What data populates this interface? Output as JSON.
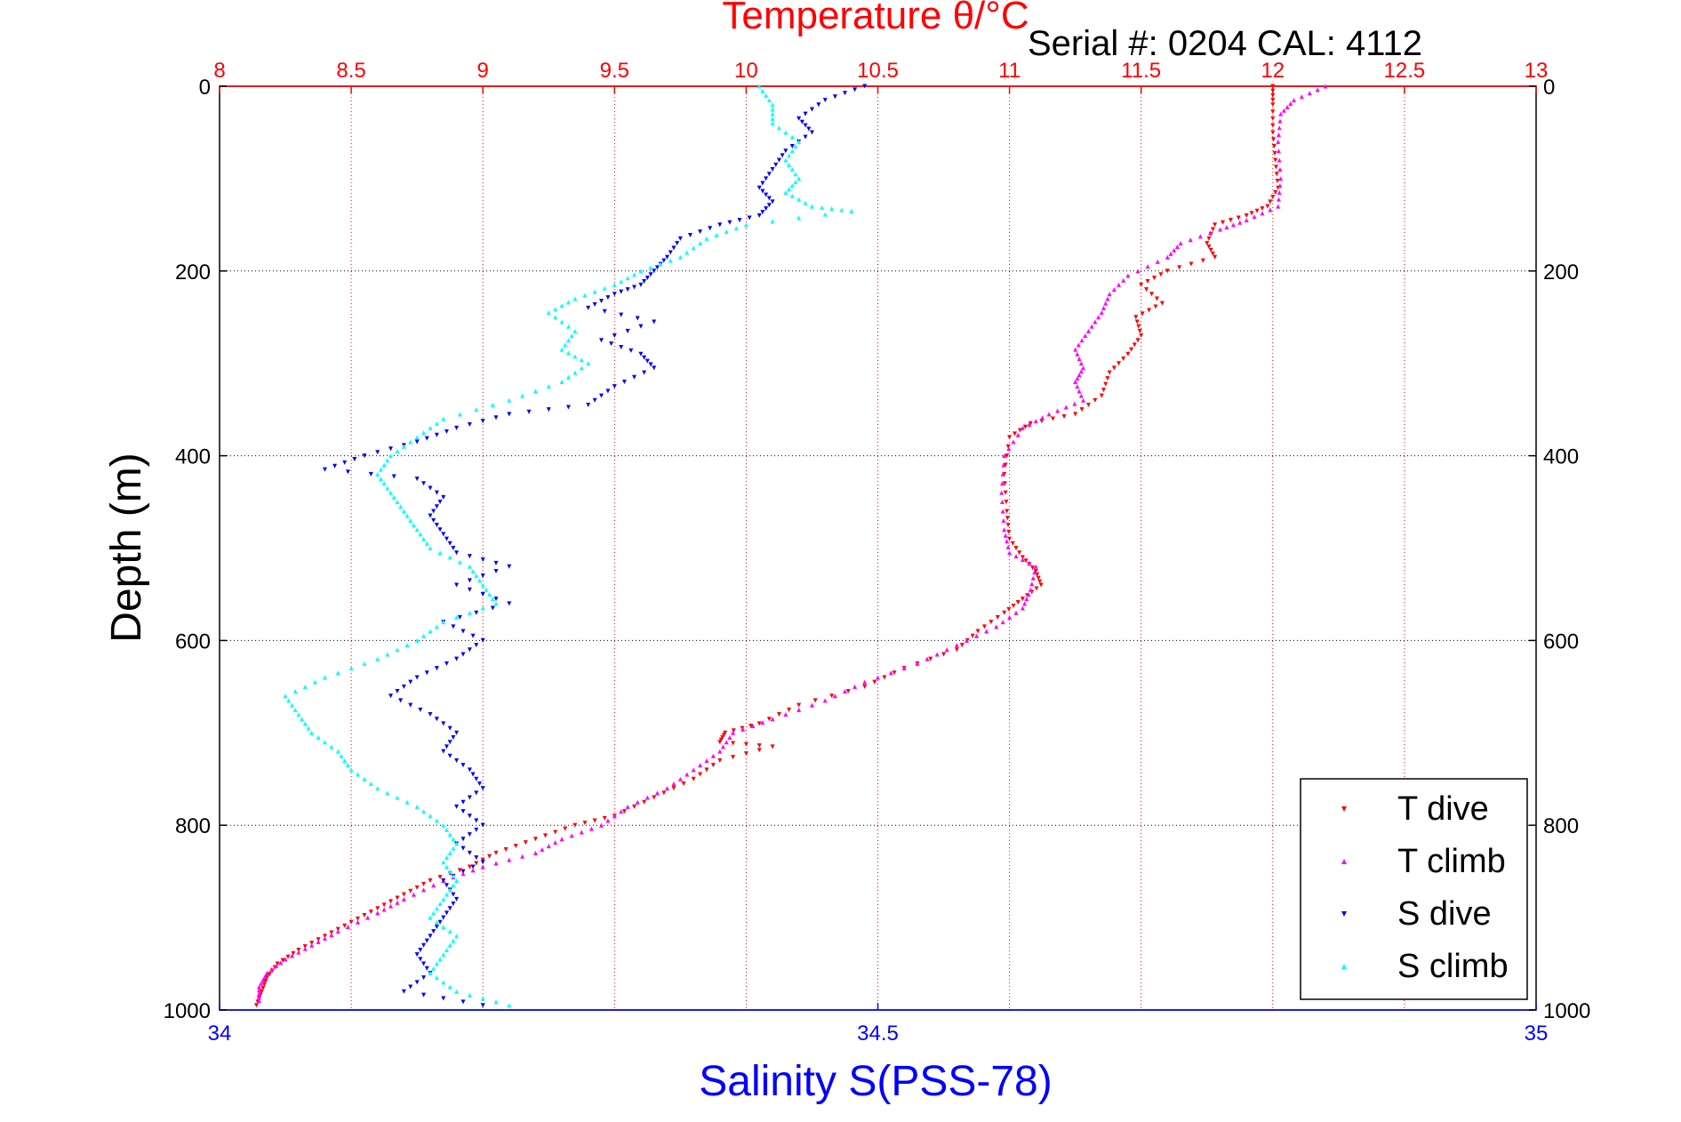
{
  "chart_data": {
    "type": "scatter",
    "title": "Temperature θ/°C",
    "subtitle": "Serial #: 0204  CAL: 4112",
    "xlabel": "Salinity S(PSS-78)",
    "ylabel": "Depth (m)",
    "x_top": {
      "label": "Temperature θ/°C",
      "range": [
        8,
        13
      ],
      "ticks": [
        "8",
        "8.5",
        "9",
        "9.5",
        "10",
        "10.5",
        "11",
        "11.5",
        "12",
        "12.5",
        "13"
      ],
      "color": "#ff0000"
    },
    "x_bottom": {
      "label": "Salinity S(PSS-78)",
      "range": [
        34,
        35
      ],
      "ticks": [
        "34",
        "34.5",
        "35"
      ],
      "color": "#0000ff"
    },
    "y": {
      "label": "Depth (m)",
      "range": [
        0,
        1000
      ],
      "reversed": true,
      "ticks": [
        "0",
        "200",
        "400",
        "600",
        "800",
        "1000"
      ]
    },
    "grid": true,
    "legend_position": "bottom-right",
    "series": [
      {
        "name": "T dive",
        "axis": "top",
        "color": "#ff0000",
        "marker": "triangle-down",
        "points": [
          [
            12.0,
            0
          ],
          [
            12.0,
            20
          ],
          [
            12.0,
            50
          ],
          [
            12.01,
            80
          ],
          [
            12.02,
            110
          ],
          [
            11.98,
            130
          ],
          [
            11.9,
            140
          ],
          [
            11.78,
            150
          ],
          [
            11.75,
            170
          ],
          [
            11.78,
            185
          ],
          [
            11.6,
            200
          ],
          [
            11.5,
            215
          ],
          [
            11.58,
            235
          ],
          [
            11.48,
            250
          ],
          [
            11.5,
            270
          ],
          [
            11.45,
            290
          ],
          [
            11.38,
            310
          ],
          [
            11.35,
            335
          ],
          [
            11.25,
            355
          ],
          [
            11.08,
            365
          ],
          [
            11.0,
            380
          ],
          [
            10.98,
            420
          ],
          [
            10.99,
            460
          ],
          [
            11.0,
            490
          ],
          [
            11.05,
            510
          ],
          [
            11.1,
            525
          ],
          [
            11.12,
            540
          ],
          [
            11.05,
            555
          ],
          [
            10.98,
            570
          ],
          [
            10.88,
            590
          ],
          [
            10.8,
            610
          ],
          [
            10.6,
            630
          ],
          [
            10.45,
            650
          ],
          [
            10.2,
            670
          ],
          [
            10.05,
            690
          ],
          [
            9.92,
            700
          ],
          [
            9.9,
            710
          ],
          [
            10.1,
            715
          ],
          [
            9.9,
            730
          ],
          [
            9.8,
            750
          ],
          [
            9.65,
            770
          ],
          [
            9.5,
            790
          ],
          [
            9.35,
            800
          ],
          [
            9.2,
            815
          ],
          [
            9.05,
            830
          ],
          [
            8.95,
            845
          ],
          [
            8.8,
            860
          ],
          [
            8.7,
            875
          ],
          [
            8.6,
            890
          ],
          [
            8.5,
            905
          ],
          [
            8.4,
            920
          ],
          [
            8.3,
            935
          ],
          [
            8.22,
            950
          ],
          [
            8.18,
            965
          ],
          [
            8.16,
            980
          ],
          [
            8.14,
            995
          ]
        ]
      },
      {
        "name": "T climb",
        "axis": "top",
        "color": "#ff00ff",
        "marker": "triangle-up",
        "points": [
          [
            12.2,
            0
          ],
          [
            12.08,
            15
          ],
          [
            12.03,
            30
          ],
          [
            12.02,
            60
          ],
          [
            12.03,
            100
          ],
          [
            12.02,
            130
          ],
          [
            11.9,
            145
          ],
          [
            11.8,
            155
          ],
          [
            11.65,
            170
          ],
          [
            11.6,
            185
          ],
          [
            11.45,
            205
          ],
          [
            11.38,
            225
          ],
          [
            11.35,
            245
          ],
          [
            11.3,
            265
          ],
          [
            11.25,
            285
          ],
          [
            11.28,
            305
          ],
          [
            11.25,
            320
          ],
          [
            11.28,
            340
          ],
          [
            11.15,
            355
          ],
          [
            11.05,
            370
          ],
          [
            10.98,
            400
          ],
          [
            10.97,
            440
          ],
          [
            10.98,
            480
          ],
          [
            11.0,
            505
          ],
          [
            11.1,
            520
          ],
          [
            11.08,
            545
          ],
          [
            11.05,
            565
          ],
          [
            10.95,
            585
          ],
          [
            10.8,
            605
          ],
          [
            10.65,
            625
          ],
          [
            10.45,
            645
          ],
          [
            10.3,
            665
          ],
          [
            10.1,
            685
          ],
          [
            9.95,
            700
          ],
          [
            9.9,
            720
          ],
          [
            9.8,
            740
          ],
          [
            9.7,
            760
          ],
          [
            9.55,
            780
          ],
          [
            9.45,
            800
          ],
          [
            9.3,
            815
          ],
          [
            9.2,
            830
          ],
          [
            9.0,
            845
          ],
          [
            8.85,
            860
          ],
          [
            8.7,
            880
          ],
          [
            8.6,
            895
          ],
          [
            8.45,
            915
          ],
          [
            8.35,
            930
          ],
          [
            8.25,
            945
          ],
          [
            8.18,
            960
          ],
          [
            8.15,
            975
          ],
          [
            8.15,
            990
          ]
        ]
      },
      {
        "name": "S dive",
        "axis": "bottom",
        "color": "#0000ff",
        "marker": "triangle-down",
        "points": [
          [
            34.49,
            0
          ],
          [
            34.46,
            15
          ],
          [
            34.44,
            35
          ],
          [
            34.45,
            50
          ],
          [
            34.43,
            70
          ],
          [
            34.42,
            90
          ],
          [
            34.41,
            110
          ],
          [
            34.42,
            125
          ],
          [
            34.41,
            140
          ],
          [
            34.38,
            150
          ],
          [
            34.35,
            165
          ],
          [
            34.34,
            185
          ],
          [
            34.33,
            200
          ],
          [
            34.32,
            215
          ],
          [
            34.3,
            225
          ],
          [
            34.28,
            240
          ],
          [
            34.33,
            255
          ],
          [
            34.29,
            275
          ],
          [
            34.32,
            290
          ],
          [
            34.33,
            305
          ],
          [
            34.3,
            325
          ],
          [
            34.28,
            345
          ],
          [
            34.22,
            355
          ],
          [
            34.18,
            370
          ],
          [
            34.15,
            385
          ],
          [
            34.11,
            400
          ],
          [
            34.08,
            415
          ],
          [
            34.15,
            425
          ],
          [
            34.17,
            445
          ],
          [
            34.16,
            465
          ],
          [
            34.17,
            485
          ],
          [
            34.18,
            505
          ],
          [
            34.22,
            520
          ],
          [
            34.18,
            540
          ],
          [
            34.22,
            560
          ],
          [
            34.17,
            580
          ],
          [
            34.2,
            600
          ],
          [
            34.18,
            620
          ],
          [
            34.15,
            640
          ],
          [
            34.13,
            660
          ],
          [
            34.16,
            680
          ],
          [
            34.18,
            700
          ],
          [
            34.17,
            720
          ],
          [
            34.19,
            740
          ],
          [
            34.2,
            760
          ],
          [
            34.18,
            780
          ],
          [
            34.2,
            800
          ],
          [
            34.18,
            820
          ],
          [
            34.2,
            840
          ],
          [
            34.17,
            860
          ],
          [
            34.18,
            880
          ],
          [
            34.17,
            900
          ],
          [
            34.16,
            920
          ],
          [
            34.15,
            940
          ],
          [
            34.16,
            960
          ],
          [
            34.14,
            980
          ],
          [
            34.2,
            995
          ]
        ]
      },
      {
        "name": "S climb",
        "axis": "bottom",
        "color": "#00ffff",
        "marker": "triangle-up",
        "points": [
          [
            34.41,
            0
          ],
          [
            34.42,
            20
          ],
          [
            34.42,
            40
          ],
          [
            34.44,
            60
          ],
          [
            34.43,
            80
          ],
          [
            34.44,
            100
          ],
          [
            34.43,
            115
          ],
          [
            34.45,
            130
          ],
          [
            34.48,
            135
          ],
          [
            34.4,
            150
          ],
          [
            34.37,
            165
          ],
          [
            34.35,
            185
          ],
          [
            34.32,
            200
          ],
          [
            34.3,
            215
          ],
          [
            34.27,
            230
          ],
          [
            34.25,
            245
          ],
          [
            34.27,
            265
          ],
          [
            34.26,
            285
          ],
          [
            34.28,
            300
          ],
          [
            34.26,
            320
          ],
          [
            34.22,
            340
          ],
          [
            34.17,
            360
          ],
          [
            34.15,
            380
          ],
          [
            34.13,
            400
          ],
          [
            34.12,
            420
          ],
          [
            34.13,
            440
          ],
          [
            34.14,
            460
          ],
          [
            34.15,
            480
          ],
          [
            34.16,
            500
          ],
          [
            34.19,
            520
          ],
          [
            34.2,
            540
          ],
          [
            34.21,
            560
          ],
          [
            34.17,
            580
          ],
          [
            34.15,
            600
          ],
          [
            34.12,
            620
          ],
          [
            34.08,
            640
          ],
          [
            34.05,
            660
          ],
          [
            34.06,
            680
          ],
          [
            34.07,
            700
          ],
          [
            34.09,
            720
          ],
          [
            34.1,
            740
          ],
          [
            34.12,
            760
          ],
          [
            34.15,
            780
          ],
          [
            34.17,
            800
          ],
          [
            34.18,
            820
          ],
          [
            34.17,
            840
          ],
          [
            34.18,
            860
          ],
          [
            34.17,
            880
          ],
          [
            34.16,
            900
          ],
          [
            34.18,
            920
          ],
          [
            34.17,
            940
          ],
          [
            34.16,
            960
          ],
          [
            34.18,
            980
          ],
          [
            34.22,
            995
          ]
        ]
      }
    ]
  },
  "legend": {
    "entries": [
      {
        "label": "T dive",
        "color": "#ff0000"
      },
      {
        "label": "T climb",
        "color": "#ff00ff"
      },
      {
        "label": "S dive",
        "color": "#0000ff"
      },
      {
        "label": "S climb",
        "color": "#00ffff"
      }
    ]
  }
}
